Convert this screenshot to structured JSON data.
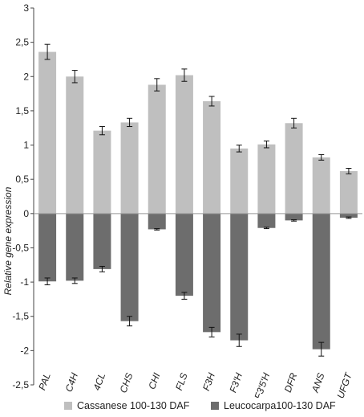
{
  "chart_data": {
    "type": "bar",
    "title": "",
    "xlabel": "",
    "ylabel": "Relative gene expression",
    "ylim": [
      -2.5,
      3
    ],
    "yticks": [
      "3",
      "2,5",
      "2",
      "1,5",
      "1",
      "0,5",
      "0",
      "-0,5",
      "-1",
      "-1,5",
      "-2",
      "-2,5"
    ],
    "ytick_values": [
      3,
      2.5,
      2,
      1.5,
      1,
      0.5,
      0,
      -0.5,
      -1,
      -1.5,
      -2,
      -2.5
    ],
    "categories": [
      "PAL",
      "C4H",
      "4CL",
      "CHS",
      "CHI",
      "FLS",
      "F3H",
      "F3'H",
      "F3'5'H",
      "DFR",
      "ANS",
      "UFGT"
    ],
    "series": [
      {
        "name": "Cassanese 100-130 DAF",
        "color": "#bfbfbf",
        "values": [
          2.36,
          2.0,
          1.21,
          1.33,
          1.88,
          2.02,
          1.64,
          0.95,
          1.01,
          1.32,
          0.82,
          0.62
        ],
        "errors": [
          0.11,
          0.09,
          0.06,
          0.06,
          0.09,
          0.09,
          0.07,
          0.05,
          0.05,
          0.07,
          0.04,
          0.04
        ]
      },
      {
        "name": "Leucocarpa100-130 DAF",
        "color": "#6d6d6d",
        "values": [
          -0.99,
          -0.98,
          -0.81,
          -1.57,
          -0.23,
          -1.2,
          -1.73,
          -1.85,
          -0.21,
          -0.1,
          -1.98,
          -0.06
        ],
        "errors": [
          0.05,
          0.04,
          0.04,
          0.07,
          0.01,
          0.05,
          0.07,
          0.09,
          0.01,
          0.01,
          0.1,
          0.01
        ]
      }
    ],
    "grid": false,
    "legend": "bottom"
  }
}
